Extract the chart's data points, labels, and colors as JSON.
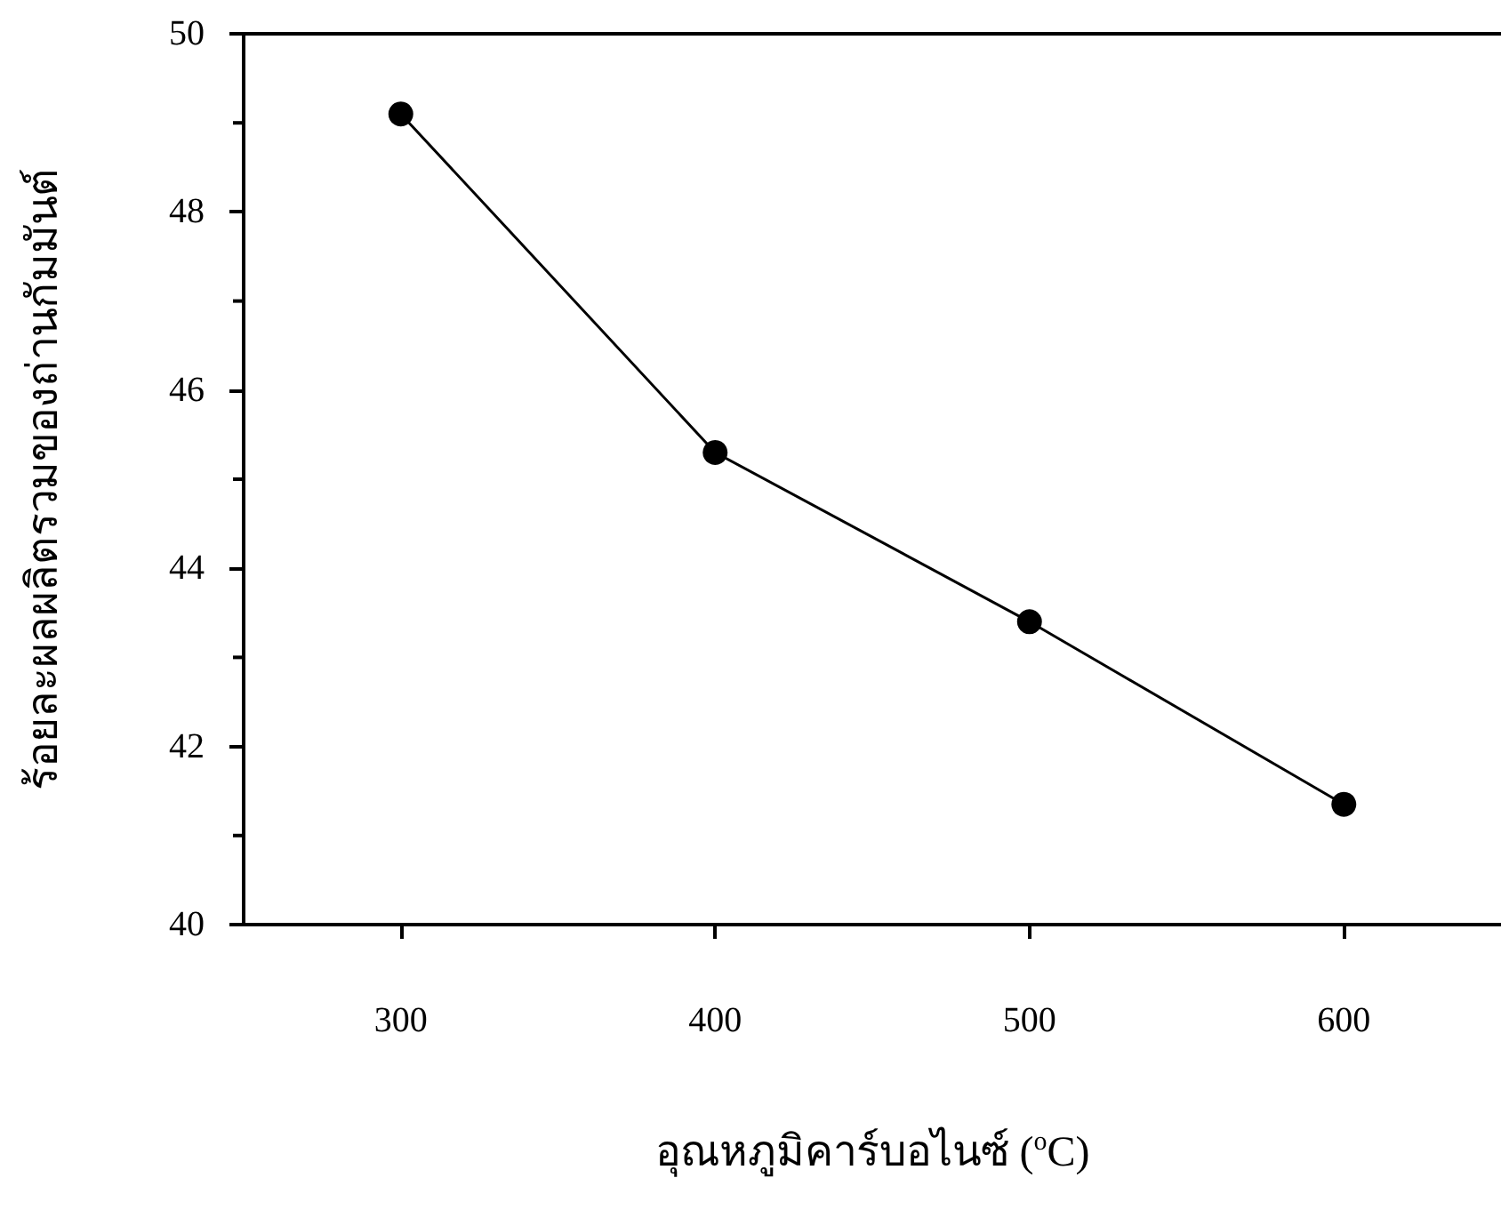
{
  "chart_data": {
    "type": "line",
    "xlabel": "อุณหภูมิคาร์บอไนซ์ ($^{o}$C)",
    "ylabel": "ร้อยละผลผลิตรวมของถ่านกัมมันต์",
    "x": [
      300,
      400,
      500,
      600
    ],
    "series": [
      {
        "color": "#000000",
        "values": [
          49.1,
          45.3,
          43.4,
          41.35
        ]
      }
    ],
    "xlim": [
      250,
      650
    ],
    "xticks": [
      300,
      400,
      500,
      600
    ],
    "ylim": [
      40,
      50
    ],
    "yticks": [
      40,
      42,
      44,
      46,
      48,
      50
    ],
    "marker": "circle",
    "line_style": "solid"
  }
}
